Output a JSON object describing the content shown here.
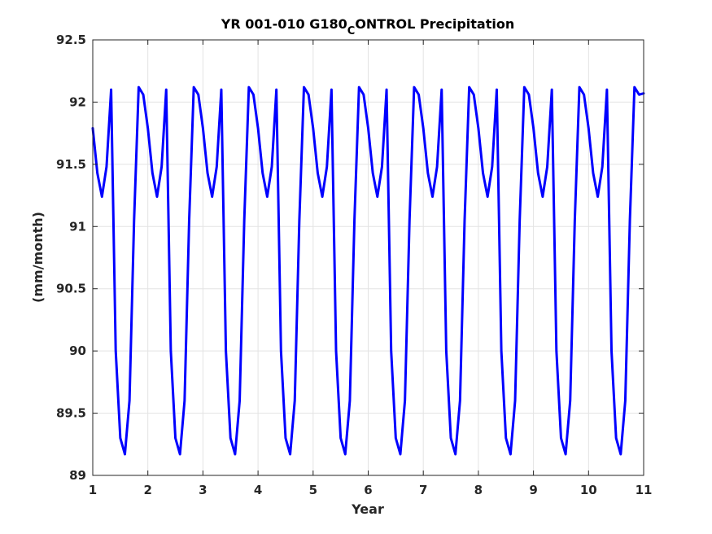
{
  "chart_data": {
    "type": "line",
    "title_parts": {
      "before": "YR 001-010 G180",
      "subscript": "C",
      "after": "ONTROL Precipitation"
    },
    "xlabel": "Year",
    "ylabel": "(mm/month)",
    "xlim": [
      1,
      11
    ],
    "ylim": [
      89,
      92.5
    ],
    "xticks": [
      1,
      2,
      3,
      4,
      5,
      6,
      7,
      8,
      9,
      10,
      11
    ],
    "xtick_labels": [
      "1",
      "2",
      "3",
      "4",
      "5",
      "6",
      "7",
      "8",
      "9",
      "10",
      "11"
    ],
    "yticks": [
      89,
      89.5,
      90,
      90.5,
      91,
      91.5,
      92,
      92.5
    ],
    "ytick_labels": [
      "89",
      "89.5",
      "90",
      "90.5",
      "91",
      "91.5",
      "92",
      "92.5"
    ],
    "grid": true,
    "line_color": "#0000ff",
    "monthly_cycle": [
      91.79,
      91.43,
      91.24,
      91.48,
      92.1,
      90.0,
      89.3,
      89.17,
      89.6,
      91.05,
      92.12,
      92.06
    ],
    "cycles": 10,
    "final_value": 92.07,
    "x_start": 1,
    "step_years": 0.0833333
  }
}
